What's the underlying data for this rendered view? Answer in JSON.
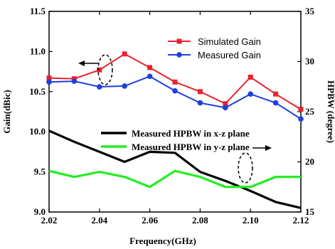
{
  "chart_data": {
    "type": "line",
    "xlabel": "Frequency(GHz)",
    "ylabel": "Gain(dBic)",
    "y2label": "HPBW (degree)",
    "xlim": [
      2.02,
      2.12
    ],
    "ylim": [
      9.0,
      11.5
    ],
    "y2lim": [
      15,
      35
    ],
    "x": [
      2.02,
      2.03,
      2.04,
      2.05,
      2.06,
      2.07,
      2.08,
      2.09,
      2.1,
      2.11,
      2.12
    ],
    "xticks": [
      "2.02",
      "2.04",
      "2.06",
      "2.08",
      "2.10",
      "2.12"
    ],
    "yticks": [
      "9.0",
      "9.5",
      "10.0",
      "10.5",
      "11.0",
      "11.5"
    ],
    "y2ticks": [
      "15",
      "20",
      "25",
      "30",
      "35"
    ],
    "grid": false,
    "series": [
      {
        "name": "Simulated Gain",
        "axis": "left",
        "color": "#e8232b",
        "marker": "square",
        "values": [
          10.67,
          10.66,
          10.77,
          10.97,
          10.8,
          10.62,
          10.5,
          10.35,
          10.68,
          10.47,
          10.28
        ]
      },
      {
        "name": "Measured Gain",
        "axis": "left",
        "color": "#1f3fe0",
        "marker": "circle",
        "values": [
          10.62,
          10.63,
          10.56,
          10.57,
          10.69,
          10.51,
          10.36,
          10.3,
          10.47,
          10.36,
          10.16
        ]
      },
      {
        "name": "Measured HPBW in x-z plane",
        "axis": "right",
        "color": "#000000",
        "marker": "none",
        "values": [
          23.1,
          22.0,
          21.0,
          20.0,
          21.0,
          20.9,
          19.0,
          18.1,
          17.1,
          16.0,
          15.4
        ]
      },
      {
        "name": "Measured HPBW in y-z plane",
        "axis": "right",
        "color": "#22ee22",
        "marker": "none",
        "values": [
          19.1,
          18.5,
          19.0,
          18.5,
          17.5,
          19.1,
          18.5,
          17.5,
          17.5,
          18.5,
          18.5
        ]
      }
    ],
    "legend": {
      "upper": "top-right",
      "lower": "center-right"
    }
  }
}
